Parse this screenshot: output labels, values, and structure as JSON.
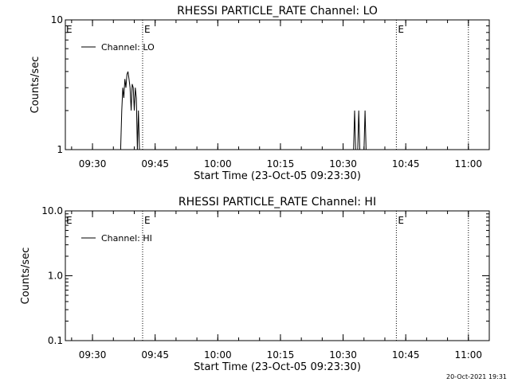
{
  "stamp": "20-Oct-2021 19:31",
  "colors": {
    "line": "#000000",
    "background": "#ffffff"
  },
  "chart_data": [
    {
      "type": "line",
      "title": "RHESSI PARTICLE_RATE Channel: LO",
      "xlabel": "Start Time (23-Oct-05 09:23:30)",
      "ylabel": "Counts/sec",
      "yscale": "log",
      "ylim": [
        1,
        10
      ],
      "yticks": [
        1,
        10
      ],
      "ytick_labels": [
        "1",
        "10"
      ],
      "xlim": [
        "09:23:30",
        "11:05:00"
      ],
      "xticks": [
        "09:30",
        "09:45",
        "10:00",
        "10:15",
        "10:30",
        "10:45",
        "11:00"
      ],
      "grid": false,
      "legend": "top-left",
      "legend_label": "Channel: LO",
      "event_markers": [
        {
          "time": "09:42:00",
          "label": "E"
        },
        {
          "time": "10:42:45",
          "label": "E"
        },
        {
          "time": "11:00:00",
          "label": ""
        }
      ],
      "series": [
        {
          "name": "Channel: LO",
          "points": [
            [
              "09:36:45",
              1
            ],
            [
              "09:37:00",
              2
            ],
            [
              "09:37:15",
              3
            ],
            [
              "09:37:30",
              2.5
            ],
            [
              "09:37:45",
              3.5
            ],
            [
              "09:38:00",
              3
            ],
            [
              "09:38:15",
              3.8
            ],
            [
              "09:38:30",
              4
            ],
            [
              "09:38:45",
              3.5
            ],
            [
              "09:39:00",
              3
            ],
            [
              "09:39:15",
              2
            ],
            [
              "09:39:30",
              3.2
            ],
            [
              "09:39:45",
              3
            ],
            [
              "09:40:00",
              2
            ],
            [
              "09:40:15",
              3
            ],
            [
              "09:40:30",
              2.5
            ],
            [
              "09:40:45",
              1
            ],
            [
              "09:41:00",
              2
            ],
            [
              "09:41:15",
              1
            ],
            [
              "10:32:30",
              1
            ],
            [
              "10:32:45",
              2
            ],
            [
              "10:33:00",
              1
            ],
            [
              "10:33:30",
              1
            ],
            [
              "10:33:45",
              2
            ],
            [
              "10:34:00",
              1
            ],
            [
              "10:35:00",
              1
            ],
            [
              "10:35:15",
              2
            ],
            [
              "10:35:30",
              1
            ]
          ]
        }
      ]
    },
    {
      "type": "line",
      "title": "RHESSI PARTICLE_RATE Channel: HI",
      "xlabel": "Start Time (23-Oct-05 09:23:30)",
      "ylabel": "Counts/sec",
      "yscale": "log",
      "ylim": [
        0.1,
        10
      ],
      "yticks": [
        0.1,
        1,
        10
      ],
      "ytick_labels": [
        "0.1",
        "1.0",
        "10.0"
      ],
      "xlim": [
        "09:23:30",
        "11:05:00"
      ],
      "xticks": [
        "09:30",
        "09:45",
        "10:00",
        "10:15",
        "10:30",
        "10:45",
        "11:00"
      ],
      "grid": false,
      "legend": "top-left",
      "legend_label": "Channel: HI",
      "event_markers": [
        {
          "time": "09:42:00",
          "label": "E"
        },
        {
          "time": "10:42:45",
          "label": "E"
        },
        {
          "time": "11:00:00",
          "label": ""
        }
      ],
      "series": [
        {
          "name": "Channel: HI",
          "points": []
        }
      ]
    }
  ]
}
